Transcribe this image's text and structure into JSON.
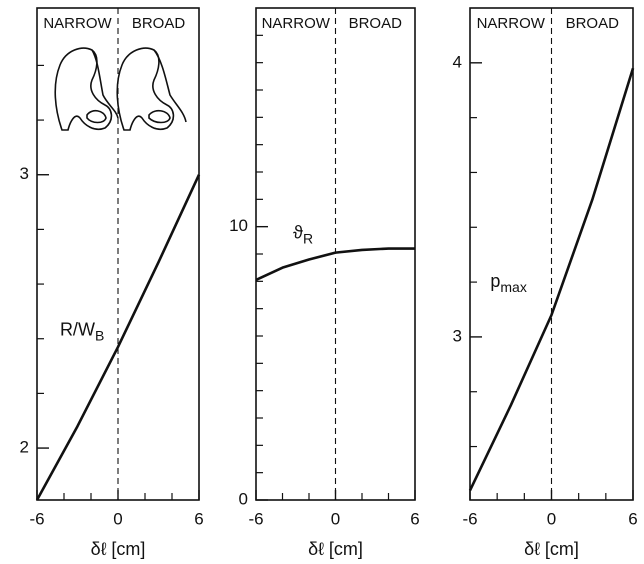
{
  "chart_data": [
    {
      "type": "line",
      "x_label": "δℓ [cm]",
      "region_labels": [
        "NARROW",
        "BROAD"
      ],
      "divider": 0,
      "x": [
        -6,
        -3,
        0,
        3,
        6
      ],
      "series": [
        {
          "color": "#111111",
          "values": [
            1.81,
            2.08,
            2.37,
            2.68,
            3.0
          ]
        }
      ],
      "curve_label": {
        "text": "R/W",
        "subscript": "B"
      },
      "xlim": [
        -6,
        6
      ],
      "xticks": [
        -6,
        0,
        6
      ],
      "minor_xticks": [
        -4,
        -2,
        2,
        4
      ],
      "ylim": [
        1.81,
        3.61
      ],
      "yticks": [
        2,
        3
      ],
      "minor_yticks": [
        2.2,
        2.4,
        2.6,
        2.8,
        3.2,
        3.4
      ]
    },
    {
      "type": "line",
      "x_label": "δℓ [cm]",
      "region_labels": [
        "NARROW",
        "BROAD"
      ],
      "divider": 0,
      "x": [
        -6,
        -4,
        -2,
        0,
        2,
        4,
        6
      ],
      "series": [
        {
          "color": "#111111",
          "values": [
            8.05,
            8.5,
            8.8,
            9.05,
            9.15,
            9.2,
            9.2
          ]
        }
      ],
      "curve_label": {
        "text": "ϑ",
        "subscript": "R"
      },
      "xlim": [
        -6,
        6
      ],
      "xticks": [
        -6,
        0,
        6
      ],
      "minor_xticks": [
        -4,
        -2,
        2,
        4
      ],
      "ylim": [
        0,
        18
      ],
      "yticks": [
        0,
        10
      ],
      "minor_yticks": [
        1,
        2,
        3,
        4,
        5,
        6,
        7,
        8,
        9,
        11,
        12,
        13,
        14,
        15,
        16,
        17
      ]
    },
    {
      "type": "line",
      "x_label": "δℓ [cm]",
      "region_labels": [
        "NARROW",
        "BROAD"
      ],
      "divider": 0,
      "x": [
        -6,
        -3,
        0,
        3,
        6
      ],
      "series": [
        {
          "color": "#111111",
          "values": [
            2.44,
            2.75,
            3.08,
            3.5,
            3.98
          ]
        }
      ],
      "curve_label": {
        "text": "p",
        "subscript": "max"
      },
      "xlim": [
        -6,
        6
      ],
      "xticks": [
        -6,
        0,
        6
      ],
      "minor_xticks": [
        -4,
        -2,
        2,
        4
      ],
      "ylim": [
        2.405,
        4.2
      ],
      "yticks": [
        3,
        4
      ],
      "minor_yticks": [
        2.6,
        2.8,
        3.2,
        3.4,
        3.6,
        3.8
      ]
    }
  ]
}
